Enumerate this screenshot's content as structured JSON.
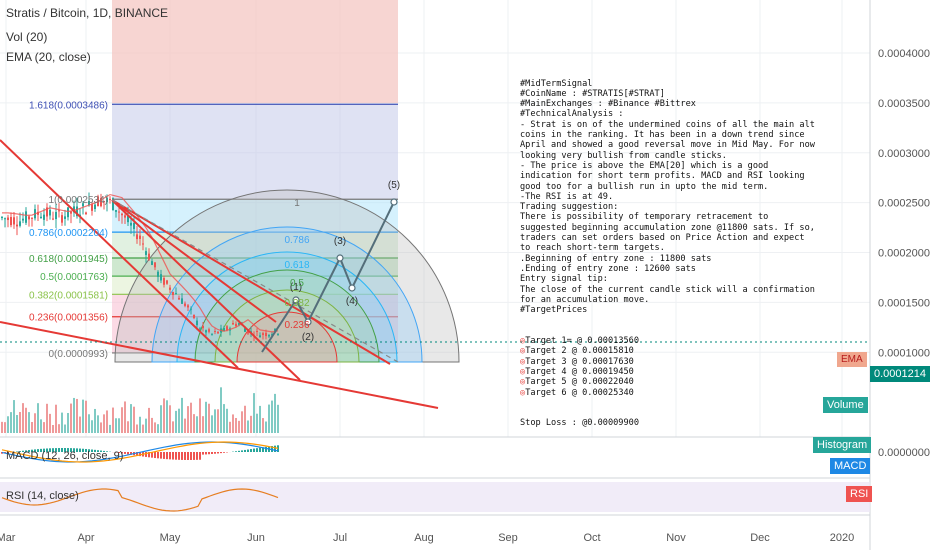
{
  "header": {
    "symbol_line": "Stratis / Bitcoin, 1D, BINANCE",
    "vol_line": "Vol (20)",
    "ema_line": "EMA (20, close)"
  },
  "price_axis": {
    "ticks": [
      "0.0004000",
      "0.0003500",
      "0.0003000",
      "0.0002500",
      "0.0002000",
      "0.0001500",
      "0.0001000",
      "0.0000000"
    ],
    "current_price": "0.0001214",
    "current_price_color": "#00897b"
  },
  "time_axis": {
    "labels": [
      "Mar",
      "Apr",
      "May",
      "Jun",
      "Jul",
      "Aug",
      "Sep",
      "Oct",
      "Nov",
      "Dec",
      "2020"
    ]
  },
  "tags": {
    "ema": "EMA",
    "volume": "Volume",
    "histogram": "Histogram",
    "macd": "MACD",
    "rsi": "RSI"
  },
  "indicators": {
    "macd_label": "MACD (12, 26, close, 9)",
    "rsi_label": "RSI (14, close)"
  },
  "fib_retracement": [
    {
      "ratio": "1.618",
      "price": "0.0003486",
      "label": "1.618(0.0003486)"
    },
    {
      "ratio": "1",
      "price": "0.0002534",
      "label": "1(0.0002534)"
    },
    {
      "ratio": "0.786",
      "price": "0.0002204",
      "label": "0.786(0.0002204)"
    },
    {
      "ratio": "0.618",
      "price": "0.0001945",
      "label": "0.618(0.0001945)"
    },
    {
      "ratio": "0.5",
      "price": "0.0001763",
      "label": "0.5(0.0001763)"
    },
    {
      "ratio": "0.382",
      "price": "0.0001581",
      "label": "0.382(0.0001581)"
    },
    {
      "ratio": "0.236",
      "price": "0.0001356",
      "label": "0.236(0.0001356)"
    },
    {
      "ratio": "0",
      "price": "0.0000993",
      "label": "0(0.0000993)"
    }
  ],
  "fib_fan_labels": [
    "1",
    "0.786",
    "0.618",
    "0.5",
    "0.382",
    "0.236"
  ],
  "wave_labels": [
    "(1)",
    "(2)",
    "(3)",
    "(4)",
    "(5)"
  ],
  "idea_text": "#MidTermSignal\n#CoinName : #STRATIS[#STRAT]\n#MainExchanges : #Binance #Bittrex\n#TechnicalAnalysis :\n- Strat is on of the undermined coins of all the main alt coins in the ranking. It has been in a down trend since April and showed a good reversal move in Mid May. For now looking very bullish from candle sticks.\n- The price is above the EMA[20] which is a good indication for short term profits. MACD and RSI looking good too for a bullish run in upto the mid term.\n-The RSI is at 49.\nTrading suggestion:\nThere is possibility of temporary retracement to suggested beginning accumulation zone @11800 sats. If so, traders can set orders based on Price Action and expect to reach short-term targets.\n.Beginning of entry zone : 11800 sats\n.Ending of entry zone : 12600 sats\nEntry signal tip:\nThe close of the current candle stick will a confirmation for an accumulation move.\n#TargetPrices",
  "targets": [
    "Target 1= @ 0.00013560",
    "Target 2 @ 0.00015810",
    "Target 3 @ 0.00017630",
    "Target 4 @ 0.00019450",
    "Target 5 @ 0.00022040",
    "Target 6 @ 0.00025340"
  ],
  "stop_loss": "Stop Loss : @0.00009900",
  "chart_data": {
    "type": "line",
    "title": "Stratis / Bitcoin, 1D, BINANCE",
    "y_unit": "BTC",
    "x_labels": [
      "Mar",
      "Apr",
      "May",
      "Jun",
      "Jul",
      "Aug",
      "Sep",
      "Oct",
      "Nov",
      "Dec",
      "2020"
    ],
    "price_path": {
      "points": [
        [
          "Mar",
          0.000235
        ],
        [
          "Apr",
          0.000253
        ],
        [
          "Apr-mid",
          0.000205
        ],
        [
          "May-start",
          0.00016
        ],
        [
          "May-mid",
          0.00012
        ],
        [
          "Jun-start",
          0.000125
        ],
        [
          "Jun-10",
          0.000121
        ]
      ]
    },
    "projection_path": {
      "points": [
        [
          "Jun-10",
          0.000121
        ],
        [
          "(1)",
          0.00016
        ],
        [
          "(2)",
          0.000145
        ],
        [
          "(3)",
          0.00021
        ],
        [
          "(4)",
          0.00018
        ],
        [
          "(5)",
          0.000253
        ]
      ]
    },
    "ylim": [
      0.0,
      0.00042
    ],
    "grid": true
  }
}
